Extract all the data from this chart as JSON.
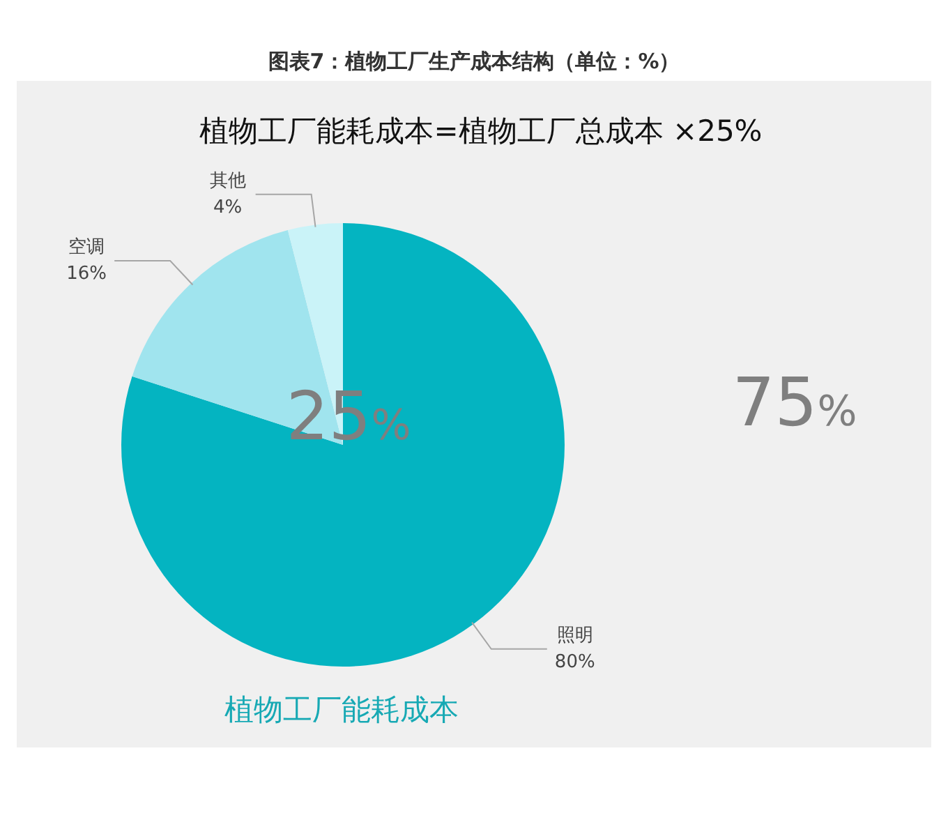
{
  "chart_data": {
    "type": "pie",
    "title": "图表7：植物工厂生产成本结构（单位：%）",
    "subtitle": "植物工厂能耗成本=植物工厂总成本 ×25%",
    "categories": [
      "照明",
      "空调",
      "其他"
    ],
    "values": [
      80,
      16,
      4
    ],
    "colors": [
      "#04b4c1",
      "#a0e4ee",
      "#caf3f8"
    ],
    "value_labels": [
      "80%",
      "16%",
      "4%"
    ],
    "annotations": [
      "25%",
      "75%",
      "植物工厂能耗成本"
    ]
  }
}
